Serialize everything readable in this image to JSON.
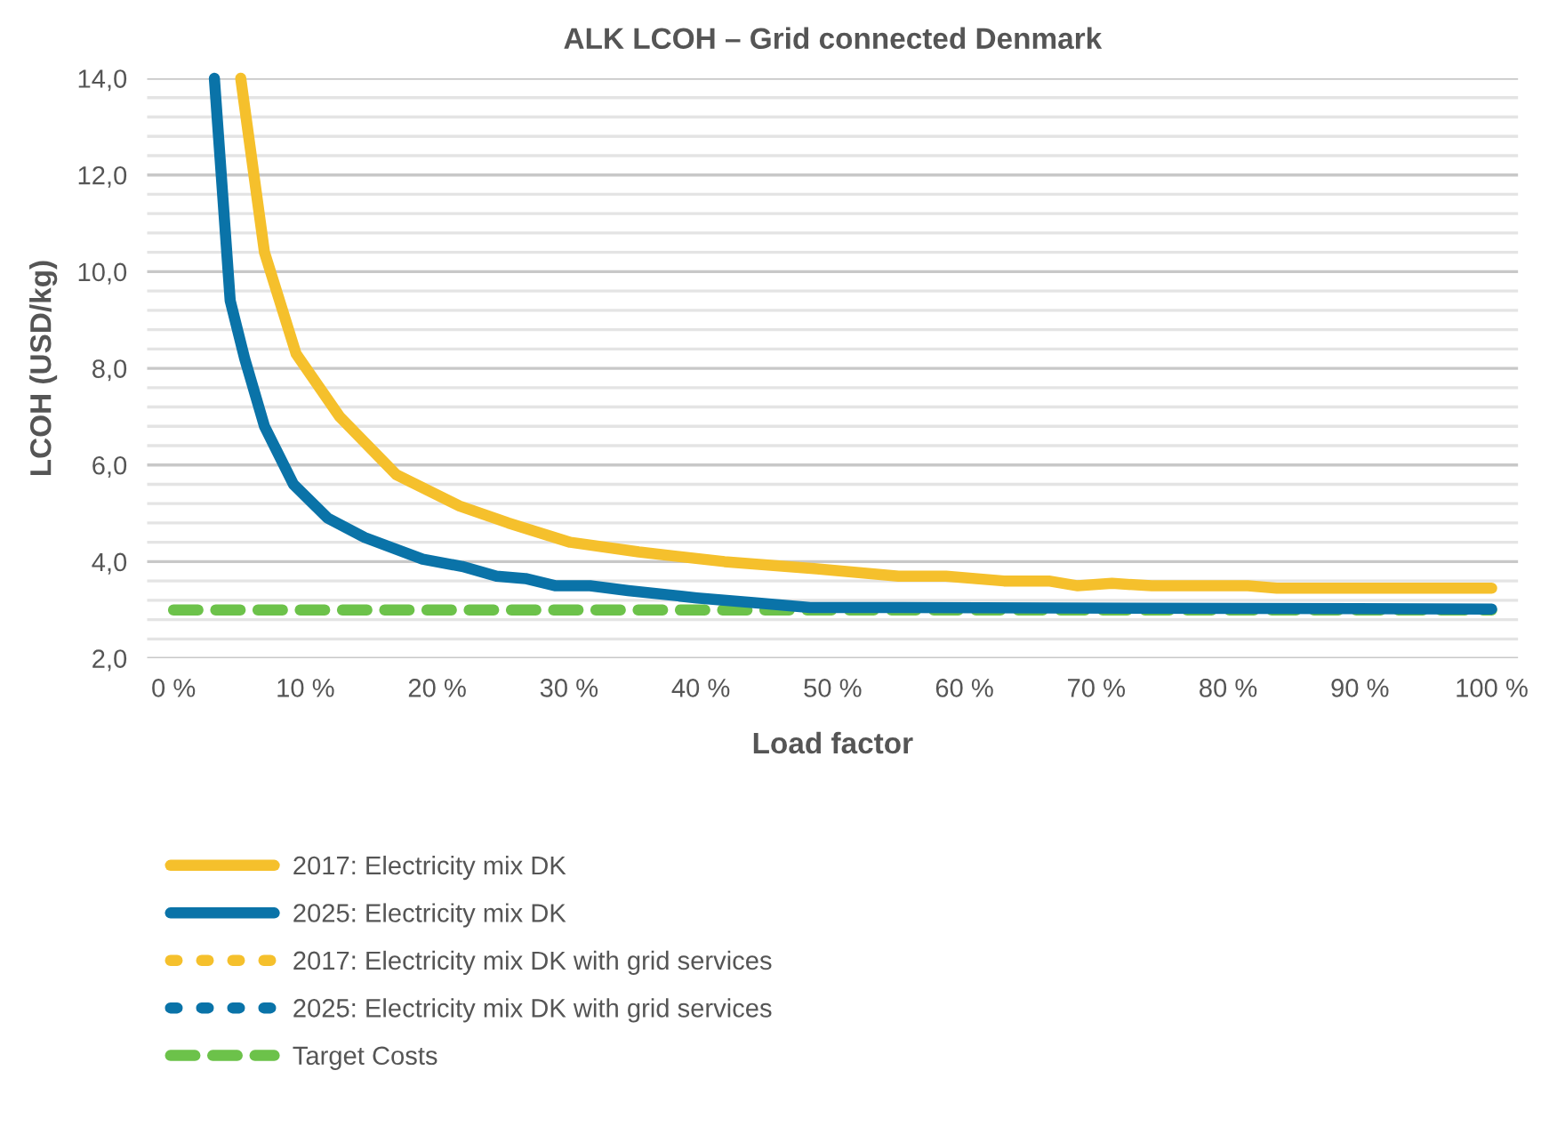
{
  "chart_data": {
    "type": "line",
    "title": "ALK LCOH – Grid connected Denmark",
    "xlabel": "Load factor",
    "ylabel": "LCOH (USD/kg)",
    "xlim": [
      -2,
      102
    ],
    "xticks": [
      {
        "value": 0,
        "label": "0 %"
      },
      {
        "value": 10,
        "label": "10 %"
      },
      {
        "value": 20,
        "label": "20 %"
      },
      {
        "value": 30,
        "label": "30 %"
      },
      {
        "value": 40,
        "label": "40 %"
      },
      {
        "value": 50,
        "label": "50 %"
      },
      {
        "value": 60,
        "label": "60 %"
      },
      {
        "value": 70,
        "label": "70 %"
      },
      {
        "value": 80,
        "label": "80 %"
      },
      {
        "value": 90,
        "label": "90 %"
      },
      {
        "value": 100,
        "label": "100 %"
      }
    ],
    "ylim": [
      2,
      14
    ],
    "yticks": [
      {
        "value": 2,
        "label": "2,0"
      },
      {
        "value": 2.4,
        "label": null
      },
      {
        "value": 2.8,
        "label": null
      },
      {
        "value": 3.2,
        "label": null
      },
      {
        "value": 3.6,
        "label": null
      },
      {
        "value": 4,
        "label": "4,0"
      },
      {
        "value": 4.4,
        "label": null
      },
      {
        "value": 4.8,
        "label": null
      },
      {
        "value": 5.2,
        "label": null
      },
      {
        "value": 5.6,
        "label": null
      },
      {
        "value": 6,
        "label": "6,0"
      },
      {
        "value": 6.4,
        "label": null
      },
      {
        "value": 6.8,
        "label": null
      },
      {
        "value": 7.2,
        "label": null
      },
      {
        "value": 7.6,
        "label": null
      },
      {
        "value": 8,
        "label": "8,0"
      },
      {
        "value": 8.4,
        "label": null
      },
      {
        "value": 8.8,
        "label": null
      },
      {
        "value": 9.2,
        "label": null
      },
      {
        "value": 9.6,
        "label": null
      },
      {
        "value": 10,
        "label": "10,0"
      },
      {
        "value": 10.4,
        "label": null
      },
      {
        "value": 10.8,
        "label": null
      },
      {
        "value": 11.2,
        "label": null
      },
      {
        "value": 11.6,
        "label": null
      },
      {
        "value": 12,
        "label": "12,0"
      },
      {
        "value": 12.4,
        "label": null
      },
      {
        "value": 12.8,
        "label": null
      },
      {
        "value": 13.2,
        "label": null
      },
      {
        "value": 13.6,
        "label": null
      },
      {
        "value": 14,
        "label": "14,0"
      }
    ],
    "grid": "y",
    "legend": "bottom",
    "marker": "none",
    "series": [
      {
        "name": "2017: Electricity mix DK",
        "color": "#f5c02c",
        "line_style": "solid",
        "x": [
          5.1,
          6.9,
          9.3,
          12.6,
          16.9,
          21.7,
          25.4,
          30.1,
          35.3,
          41.8,
          48.8,
          55.0,
          58.6,
          63.0,
          66.4,
          68.6,
          71.2,
          74.2,
          81.5,
          83.7,
          88.0,
          92.3,
          100
        ],
        "values": [
          14.0,
          10.4,
          8.3,
          7.0,
          5.8,
          5.15,
          4.8,
          4.4,
          4.2,
          4.0,
          3.85,
          3.7,
          3.7,
          3.6,
          3.6,
          3.5,
          3.55,
          3.5,
          3.5,
          3.45,
          3.45,
          3.45,
          3.45
        ]
      },
      {
        "name": "2025: Electricity mix DK",
        "color": "#0a73a8",
        "line_style": "solid",
        "x": [
          3.1,
          4.3,
          5.4,
          6.9,
          9.1,
          11.7,
          14.5,
          18.9,
          21.9,
          24.5,
          26.7,
          29.0,
          31.6,
          34.5,
          39.7,
          44.0,
          48.3,
          55.0,
          100
        ],
        "values": [
          14.0,
          9.4,
          8.2,
          6.8,
          5.6,
          4.9,
          4.5,
          4.05,
          3.9,
          3.7,
          3.65,
          3.5,
          3.5,
          3.4,
          3.25,
          3.15,
          3.05,
          3.05,
          3.02
        ]
      },
      {
        "name": "2017: Electricity mix DK with grid services",
        "color": "#f5c02c",
        "line_style": "dotted"
      },
      {
        "name": "2025: Electricity mix DK with grid services",
        "color": "#0a73a8",
        "line_style": "dotted"
      },
      {
        "name": "Target Costs",
        "color": "#6cc24a",
        "line_style": "dashed",
        "x": [
          0,
          100
        ],
        "values": [
          3.0,
          3.0
        ]
      }
    ]
  }
}
